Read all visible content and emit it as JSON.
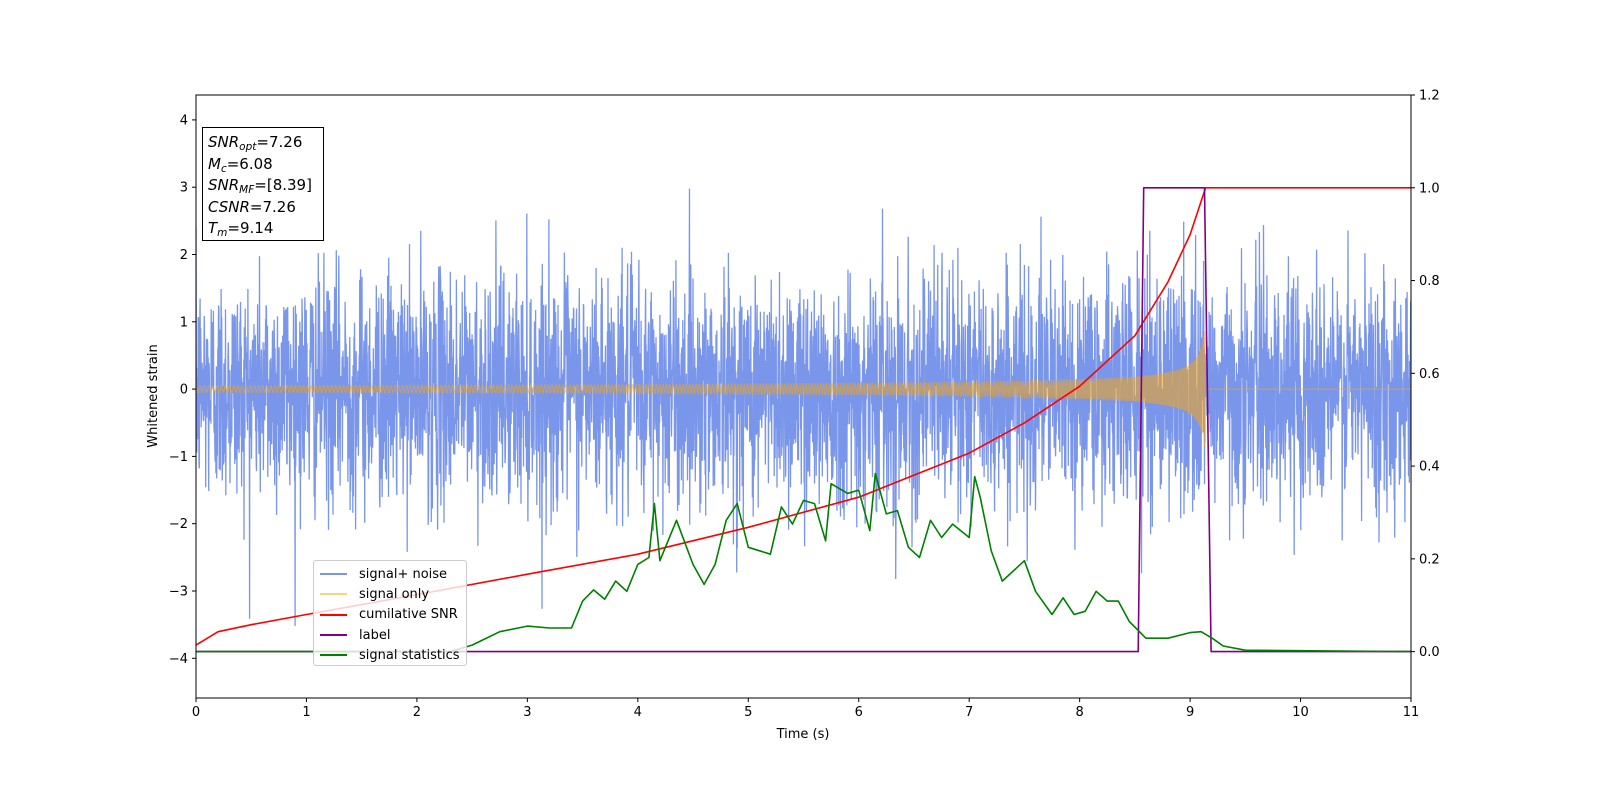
{
  "chart_data": {
    "type": "line",
    "xlabel": "Time (s)",
    "ylabel": "Whitened strain",
    "xlim": [
      0,
      11
    ],
    "ylim_left": [
      -4.59,
      4.37
    ],
    "ylim_right": [
      -0.1,
      1.2
    ],
    "x_ticks": [
      "0",
      "1",
      "2",
      "3",
      "4",
      "5",
      "6",
      "7",
      "8",
      "9",
      "10",
      "11"
    ],
    "y_ticks_left": [
      "−4",
      "−3",
      "−2",
      "−1",
      "0",
      "1",
      "2",
      "3",
      "4"
    ],
    "y_ticks_left_values": [
      -4,
      -3,
      -2,
      -1,
      0,
      1,
      2,
      3,
      4
    ],
    "y_ticks_right": [
      "0.0",
      "0.2",
      "0.4",
      "0.6",
      "0.8",
      "1.0",
      "1.2"
    ],
    "y_ticks_right_values": [
      0,
      0.2,
      0.4,
      0.6,
      0.8,
      1.0,
      1.2
    ],
    "grid": false,
    "legend_placement": "lower-left",
    "series": [
      {
        "name": "signal+ noise",
        "axis": "left",
        "color": "#7a95e9",
        "description_range": [
          -3.9,
          4.0
        ]
      },
      {
        "name": "signal only",
        "axis": "left",
        "color": "#ffa500",
        "merger_time": 9.14,
        "peak_amplitude": 0.6
      },
      {
        "name": "cumilative SNR",
        "axis": "right",
        "color": "#ff0000",
        "x": [
          0,
          0.2,
          0.5,
          1,
          2,
          3,
          4,
          5,
          6,
          7,
          7.5,
          8,
          8.5,
          8.8,
          9.0,
          9.14,
          11
        ],
        "y": [
          0.014,
          0.043,
          0.058,
          0.08,
          0.123,
          0.167,
          0.21,
          0.268,
          0.333,
          0.428,
          0.493,
          0.572,
          0.681,
          0.797,
          0.899,
          1.0,
          1.0
        ]
      },
      {
        "name": "label",
        "axis": "right",
        "color": "#800080",
        "x": [
          0,
          8.53,
          8.58,
          9.13,
          9.19,
          11
        ],
        "y": [
          0,
          0,
          1,
          1,
          0,
          0
        ]
      },
      {
        "name": "signal statistics",
        "axis": "right",
        "color": "#008000",
        "x": [
          0,
          2.3,
          2.5,
          2.75,
          3.0,
          3.2,
          3.4,
          3.5,
          3.6,
          3.7,
          3.8,
          3.9,
          4.0,
          4.1,
          4.15,
          4.2,
          4.35,
          4.5,
          4.6,
          4.7,
          4.8,
          4.9,
          5.0,
          5.2,
          5.3,
          5.4,
          5.5,
          5.6,
          5.7,
          5.75,
          5.9,
          6.0,
          6.1,
          6.15,
          6.25,
          6.35,
          6.45,
          6.55,
          6.65,
          6.75,
          6.85,
          7.0,
          7.05,
          7.1,
          7.2,
          7.3,
          7.5,
          7.6,
          7.75,
          7.85,
          7.95,
          8.05,
          8.15,
          8.25,
          8.35,
          8.45,
          8.6,
          8.8,
          9.0,
          9.1,
          9.2,
          9.3,
          9.5,
          11
        ],
        "y": [
          0,
          0,
          0.014,
          0.043,
          0.055,
          0.051,
          0.051,
          0.109,
          0.133,
          0.113,
          0.152,
          0.13,
          0.188,
          0.203,
          0.319,
          0.196,
          0.283,
          0.188,
          0.145,
          0.188,
          0.283,
          0.319,
          0.225,
          0.21,
          0.312,
          0.275,
          0.326,
          0.319,
          0.239,
          0.362,
          0.341,
          0.348,
          0.261,
          0.384,
          0.297,
          0.304,
          0.225,
          0.203,
          0.283,
          0.246,
          0.275,
          0.246,
          0.377,
          0.333,
          0.217,
          0.152,
          0.196,
          0.13,
          0.08,
          0.116,
          0.08,
          0.087,
          0.13,
          0.109,
          0.109,
          0.065,
          0.029,
          0.029,
          0.041,
          0.043,
          0.029,
          0.012,
          0.003,
          0
        ]
      }
    ]
  },
  "infobox": [
    {
      "main": "SNR",
      "sub": "opt",
      "value": "=7.26"
    },
    {
      "main": "M",
      "sub": "c",
      "value": "=6.08"
    },
    {
      "main": "SNR",
      "sub": "MF",
      "value": "=[8.39]"
    },
    {
      "main": "CSNR",
      "sub": "",
      "value": "=7.26"
    },
    {
      "main": "T",
      "sub": "m",
      "value": "=9.14"
    }
  ],
  "legend": [
    {
      "label": "signal+ noise",
      "color": "#7a95e9"
    },
    {
      "label": "signal only",
      "color": "#ffd080"
    },
    {
      "label": "cumilative SNR",
      "color": "#ff0000"
    },
    {
      "label": "label",
      "color": "#800080"
    },
    {
      "label": "signal statistics",
      "color": "#008000"
    }
  ]
}
